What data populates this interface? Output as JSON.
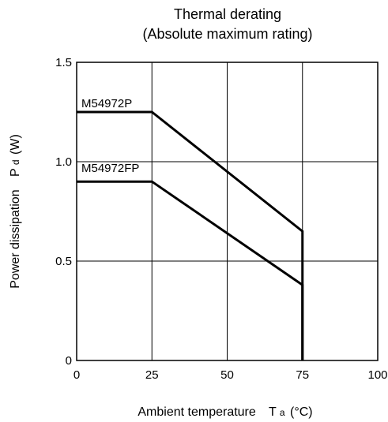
{
  "chart_data": {
    "type": "line",
    "title": "Thermal derating",
    "subtitle": "(Absolute maximum rating)",
    "xlabel": {
      "main": "Ambient temperature",
      "symbol": "T",
      "subscript": "a",
      "unit": "(°C)"
    },
    "ylabel": {
      "main": "Power dissipation",
      "symbol": "P",
      "subscript": "d",
      "unit": "(W)"
    },
    "xlim": [
      0,
      100
    ],
    "ylim": [
      0,
      1.5
    ],
    "xticks": [
      0,
      25,
      50,
      75,
      100
    ],
    "yticks": [
      0,
      0.5,
      1.0,
      1.5
    ],
    "xtick_labels": [
      "0",
      "25",
      "50",
      "75",
      "100"
    ],
    "ytick_labels": [
      "0",
      "0.5",
      "1.0",
      "1.5"
    ],
    "grid": true,
    "series": [
      {
        "name": "M54972P",
        "x": [
          0,
          25,
          75,
          75
        ],
        "y": [
          1.25,
          1.25,
          0.65,
          0
        ]
      },
      {
        "name": "M54972FP",
        "x": [
          0,
          25,
          75,
          75
        ],
        "y": [
          0.9,
          0.9,
          0.38,
          0
        ]
      }
    ]
  }
}
